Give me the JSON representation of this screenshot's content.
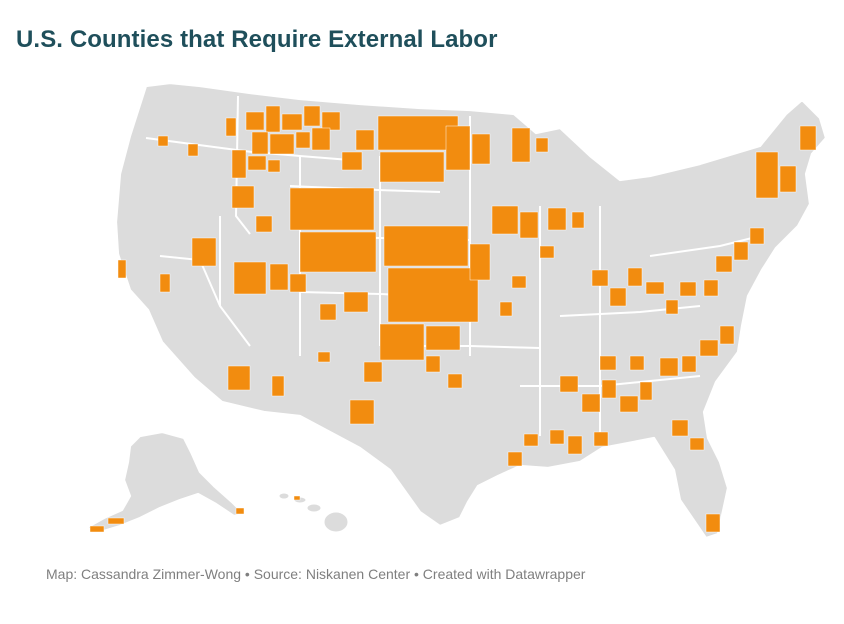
{
  "title": "U.S. Counties that Require External Labor",
  "credit": "Map: Cassandra Zimmer-Wong • Source: Niskanen Center • Created with Datawrapper",
  "colors": {
    "highlight": "#f28c0f",
    "base_land": "#dcdcdc",
    "borders": "#ffffff",
    "title": "#1f4f5b",
    "credit": "#7f7f7f"
  }
}
